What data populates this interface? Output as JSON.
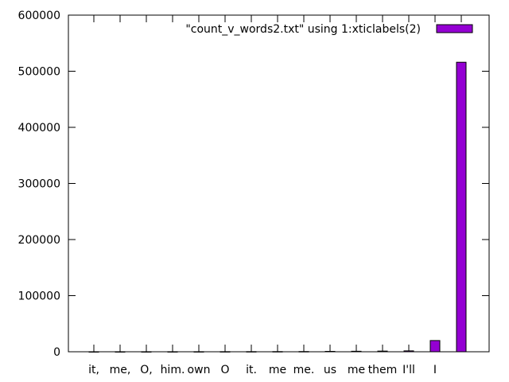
{
  "chart_data": {
    "type": "bar",
    "categories": [
      "it,",
      "me,",
      "O,",
      "him.",
      "own",
      "O",
      "it.",
      "me",
      "me.",
      "us",
      "me",
      "them",
      "I'll",
      "I",
      ""
    ],
    "series": [
      {
        "name": "\"count_v_words2.txt\" using 1:xticlabels(2)",
        "values": [
          60,
          80,
          100,
          120,
          150,
          200,
          260,
          330,
          420,
          700,
          900,
          1200,
          1600,
          20000,
          516000
        ],
        "color": "#9400d3"
      }
    ],
    "yticks": [
      "0",
      "100000",
      "200000",
      "300000",
      "400000",
      "500000",
      "600000"
    ],
    "ylim": [
      0,
      600000
    ],
    "legend": "top-right",
    "grid": false
  }
}
